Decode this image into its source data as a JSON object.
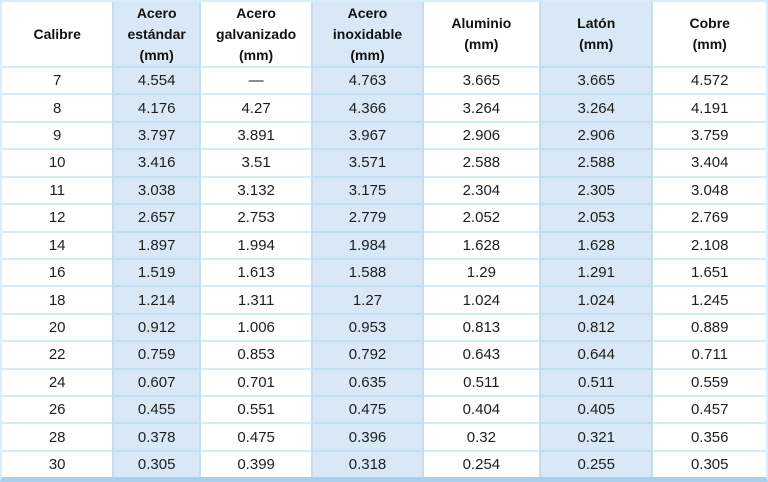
{
  "colors": {
    "shaded_column_fill": "#d8e8f6",
    "row_separator": "#d2ecfa",
    "shaded_separator": "#c2def1",
    "column_edge": "#c4def0",
    "bottom_bar": "#a6d0ec",
    "text": "#1e1e1e"
  },
  "table": {
    "columns": [
      {
        "label": "Calibre",
        "unit": "",
        "shaded": false
      },
      {
        "label": "Acero\nestándar",
        "unit": "(mm)",
        "shaded": true
      },
      {
        "label": "Acero\ngalvanizado",
        "unit": "(mm)",
        "shaded": false
      },
      {
        "label": "Acero\ninoxidable",
        "unit": "(mm)",
        "shaded": true
      },
      {
        "label": "Aluminio",
        "unit": "(mm)",
        "shaded": false
      },
      {
        "label": "Latón",
        "unit": "(mm)",
        "shaded": true
      },
      {
        "label": "Cobre",
        "unit": "(mm)",
        "shaded": false
      }
    ],
    "column_widths_pct": [
      14.58,
      11.33,
      14.71,
      14.45,
      15.36,
      14.71,
      14.86
    ],
    "rows": [
      [
        "7",
        "4.554",
        "—",
        "4.763",
        "3.665",
        "3.665",
        "4.572"
      ],
      [
        "8",
        "4.176",
        "4.27",
        "4.366",
        "3.264",
        "3.264",
        "4.191"
      ],
      [
        "9",
        "3.797",
        "3.891",
        "3.967",
        "2.906",
        "2.906",
        "3.759"
      ],
      [
        "10",
        "3.416",
        "3.51",
        "3.571",
        "2.588",
        "2.588",
        "3.404"
      ],
      [
        "11",
        "3.038",
        "3.132",
        "3.175",
        "2.304",
        "2.305",
        "3.048"
      ],
      [
        "12",
        "2.657",
        "2.753",
        "2.779",
        "2.052",
        "2.053",
        "2.769"
      ],
      [
        "14",
        "1.897",
        "1.994",
        "1.984",
        "1.628",
        "1.628",
        "2.108"
      ],
      [
        "16",
        "1.519",
        "1.613",
        "1.588",
        "1.29",
        "1.291",
        "1.651"
      ],
      [
        "18",
        "1.214",
        "1.311",
        "1.27",
        "1.024",
        "1.024",
        "1.245"
      ],
      [
        "20",
        "0.912",
        "1.006",
        "0.953",
        "0.813",
        "0.812",
        "0.889"
      ],
      [
        "22",
        "0.759",
        "0.853",
        "0.792",
        "0.643",
        "0.644",
        "0.711"
      ],
      [
        "24",
        "0.607",
        "0.701",
        "0.635",
        "0.511",
        "0.511",
        "0.559"
      ],
      [
        "26",
        "0.455",
        "0.551",
        "0.475",
        "0.404",
        "0.405",
        "0.457"
      ],
      [
        "28",
        "0.378",
        "0.475",
        "0.396",
        "0.32",
        "0.321",
        "0.356"
      ],
      [
        "30",
        "0.305",
        "0.399",
        "0.318",
        "0.254",
        "0.255",
        "0.305"
      ]
    ]
  },
  "chart_data": {
    "type": "table",
    "title": "",
    "columns": [
      "Calibre",
      "Acero estándar (mm)",
      "Acero galvanizado (mm)",
      "Acero inoxidable (mm)",
      "Aluminio (mm)",
      "Latón (mm)",
      "Cobre (mm)"
    ],
    "rows": [
      [
        "7",
        "4.554",
        "—",
        "4.763",
        "3.665",
        "3.665",
        "4.572"
      ],
      [
        "8",
        "4.176",
        "4.27",
        "4.366",
        "3.264",
        "3.264",
        "4.191"
      ],
      [
        "9",
        "3.797",
        "3.891",
        "3.967",
        "2.906",
        "2.906",
        "3.759"
      ],
      [
        "10",
        "3.416",
        "3.51",
        "3.571",
        "2.588",
        "2.588",
        "3.404"
      ],
      [
        "11",
        "3.038",
        "3.132",
        "3.175",
        "2.304",
        "2.305",
        "3.048"
      ],
      [
        "12",
        "2.657",
        "2.753",
        "2.779",
        "2.052",
        "2.053",
        "2.769"
      ],
      [
        "14",
        "1.897",
        "1.994",
        "1.984",
        "1.628",
        "1.628",
        "2.108"
      ],
      [
        "16",
        "1.519",
        "1.613",
        "1.588",
        "1.29",
        "1.291",
        "1.651"
      ],
      [
        "18",
        "1.214",
        "1.311",
        "1.27",
        "1.024",
        "1.024",
        "1.245"
      ],
      [
        "20",
        "0.912",
        "1.006",
        "0.953",
        "0.813",
        "0.812",
        "0.889"
      ],
      [
        "22",
        "0.759",
        "0.853",
        "0.792",
        "0.643",
        "0.644",
        "0.711"
      ],
      [
        "24",
        "0.607",
        "0.701",
        "0.635",
        "0.511",
        "0.511",
        "0.559"
      ],
      [
        "26",
        "0.455",
        "0.551",
        "0.475",
        "0.404",
        "0.405",
        "0.457"
      ],
      [
        "28",
        "0.378",
        "0.475",
        "0.396",
        "0.32",
        "0.321",
        "0.356"
      ],
      [
        "30",
        "0.305",
        "0.399",
        "0.318",
        "0.254",
        "0.255",
        "0.305"
      ]
    ]
  }
}
